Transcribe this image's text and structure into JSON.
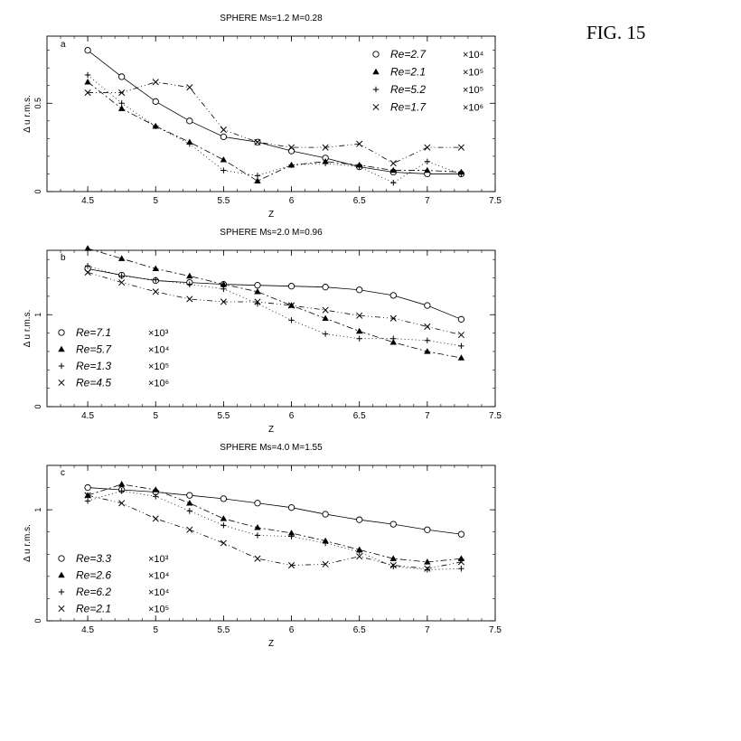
{
  "figure_label": "FIG. 15",
  "chart_data": [
    {
      "type": "line",
      "panel_letter": "a",
      "title": "SPHERE  Ms=1.2 M=0.28",
      "xlabel": "Z",
      "ylabel": "Δ u r.m.s.",
      "xlim": [
        4.2,
        7.5
      ],
      "ylim": [
        0,
        0.88
      ],
      "xticks": [
        4.5,
        5,
        5.5,
        6,
        6.5,
        7,
        7.5
      ],
      "xticklabels": [
        "4.5",
        "5",
        "5.5",
        "6",
        "6.5",
        "7",
        "7.5"
      ],
      "yticks": [
        0,
        0.5
      ],
      "yticklabels": [
        "0",
        "0.5"
      ],
      "legend_position": "top-right",
      "series": [
        {
          "name": "Re=2.7 ×10⁴",
          "marker": "circle",
          "dash": "",
          "x": [
            4.5,
            4.75,
            5,
            5.25,
            5.5,
            5.75,
            6,
            6.25,
            6.5,
            6.75,
            7,
            7.25
          ],
          "y": [
            0.8,
            0.65,
            0.51,
            0.4,
            0.31,
            0.28,
            0.23,
            0.19,
            0.14,
            0.11,
            0.1,
            0.1
          ]
        },
        {
          "name": "Re=2.1 ×10⁵",
          "marker": "triangle",
          "dash": "7 3 2 3",
          "x": [
            4.5,
            4.75,
            5,
            5.25,
            5.5,
            5.75,
            6,
            6.25,
            6.5,
            6.75,
            7,
            7.25
          ],
          "y": [
            0.62,
            0.47,
            0.37,
            0.28,
            0.18,
            0.06,
            0.15,
            0.17,
            0.15,
            0.12,
            0.12,
            0.11
          ]
        },
        {
          "name": "Re=5.2 ×10⁵",
          "marker": "plus",
          "dash": "1 3",
          "x": [
            4.5,
            4.75,
            5,
            5.25,
            5.5,
            5.75,
            6,
            6.25,
            6.5,
            6.75,
            7,
            7.25
          ],
          "y": [
            0.66,
            0.5,
            0.37,
            0.27,
            0.12,
            0.09,
            0.15,
            0.16,
            0.14,
            0.05,
            0.17,
            0.1
          ]
        },
        {
          "name": "Re=1.7 ×10⁶",
          "marker": "cross",
          "dash": "6 3 1 3 1 3",
          "x": [
            4.5,
            4.75,
            5,
            5.25,
            5.5,
            5.75,
            6,
            6.25,
            6.5,
            6.75,
            7,
            7.25
          ],
          "y": [
            0.56,
            0.56,
            0.62,
            0.59,
            0.35,
            0.28,
            0.25,
            0.25,
            0.27,
            0.16,
            0.25,
            0.25
          ]
        }
      ]
    },
    {
      "type": "line",
      "panel_letter": "b",
      "title": "SPHERE  Ms=2.0 M=0.96",
      "xlabel": "Z",
      "ylabel": "Δ u r.m.s.",
      "xlim": [
        4.2,
        7.5
      ],
      "ylim": [
        0,
        1.7
      ],
      "xticks": [
        4.5,
        5,
        5.5,
        6,
        6.5,
        7,
        7.5
      ],
      "xticklabels": [
        "4.5",
        "5",
        "5.5",
        "6",
        "6.5",
        "7",
        "7.5"
      ],
      "yticks": [
        0,
        1
      ],
      "yticklabels": [
        "0",
        "1"
      ],
      "legend_position": "bottom-left",
      "series": [
        {
          "name": "Re=7.1 ×10³",
          "marker": "circle",
          "dash": "",
          "x": [
            4.5,
            4.75,
            5,
            5.25,
            5.5,
            5.75,
            6,
            6.25,
            6.5,
            6.75,
            7,
            7.25
          ],
          "y": [
            1.5,
            1.43,
            1.37,
            1.35,
            1.33,
            1.32,
            1.31,
            1.3,
            1.27,
            1.21,
            1.1,
            0.95
          ]
        },
        {
          "name": "Re=5.7 ×10⁴",
          "marker": "triangle",
          "dash": "7 3 2 3",
          "x": [
            4.5,
            4.75,
            5,
            5.25,
            5.5,
            5.75,
            6,
            6.25,
            6.5,
            6.75,
            7,
            7.25
          ],
          "y": [
            1.72,
            1.61,
            1.5,
            1.42,
            1.33,
            1.25,
            1.1,
            0.96,
            0.82,
            0.7,
            0.6,
            0.53
          ]
        },
        {
          "name": "Re=1.3 ×10⁵",
          "marker": "plus",
          "dash": "1 3",
          "x": [
            4.5,
            4.75,
            5,
            5.25,
            5.5,
            5.75,
            6,
            6.25,
            6.5,
            6.75,
            7,
            7.25
          ],
          "y": [
            1.53,
            1.42,
            1.38,
            1.33,
            1.28,
            1.12,
            0.94,
            0.79,
            0.74,
            0.74,
            0.72,
            0.66
          ]
        },
        {
          "name": "Re=4.5 ×10⁶",
          "marker": "cross",
          "dash": "6 3 1 3 1 3",
          "x": [
            4.5,
            4.75,
            5,
            5.25,
            5.5,
            5.75,
            6,
            6.25,
            6.5,
            6.75,
            7,
            7.25
          ],
          "y": [
            1.46,
            1.35,
            1.25,
            1.17,
            1.14,
            1.14,
            1.1,
            1.05,
            0.99,
            0.96,
            0.87,
            0.78
          ]
        }
      ]
    },
    {
      "type": "line",
      "panel_letter": "c",
      "title": "SPHERE  Ms=4.0 M=1.55",
      "xlabel": "Z",
      "ylabel": "Δ u r.m.s.",
      "xlim": [
        4.2,
        7.5
      ],
      "ylim": [
        0,
        1.4
      ],
      "xticks": [
        4.5,
        5,
        5.5,
        6,
        6.5,
        7,
        7.5
      ],
      "xticklabels": [
        "4.5",
        "5",
        "5.5",
        "6",
        "6.5",
        "7",
        "7.5"
      ],
      "yticks": [
        0,
        1
      ],
      "yticklabels": [
        "0",
        "1"
      ],
      "legend_position": "bottom-left",
      "series": [
        {
          "name": "Re=3.3 ×10³",
          "marker": "circle",
          "dash": "",
          "x": [
            4.5,
            4.75,
            5,
            5.25,
            5.5,
            5.75,
            6,
            6.25,
            6.5,
            6.75,
            7,
            7.25
          ],
          "y": [
            1.2,
            1.18,
            1.16,
            1.13,
            1.1,
            1.06,
            1.02,
            0.96,
            0.91,
            0.87,
            0.82,
            0.78
          ]
        },
        {
          "name": "Re=2.6 ×10⁴",
          "marker": "triangle",
          "dash": "7 3 2 3",
          "x": [
            4.5,
            4.75,
            5,
            5.25,
            5.5,
            5.75,
            6,
            6.25,
            6.5,
            6.75,
            7,
            7.25
          ],
          "y": [
            1.13,
            1.23,
            1.18,
            1.06,
            0.92,
            0.84,
            0.79,
            0.72,
            0.64,
            0.56,
            0.53,
            0.56
          ]
        },
        {
          "name": "Re=6.2 ×10⁴",
          "marker": "plus",
          "dash": "1 3",
          "x": [
            4.5,
            4.75,
            5,
            5.25,
            5.5,
            5.75,
            6,
            6.25,
            6.5,
            6.75,
            7,
            7.25
          ],
          "y": [
            1.08,
            1.17,
            1.12,
            0.99,
            0.86,
            0.77,
            0.76,
            0.7,
            0.62,
            0.49,
            0.46,
            0.47
          ]
        },
        {
          "name": "Re=2.1 ×10⁵",
          "marker": "cross",
          "dash": "6 3 1 3 1 3",
          "x": [
            4.5,
            4.75,
            5,
            5.25,
            5.5,
            5.75,
            6,
            6.25,
            6.5,
            6.75,
            7,
            7.25
          ],
          "y": [
            1.13,
            1.06,
            0.92,
            0.82,
            0.7,
            0.56,
            0.5,
            0.51,
            0.58,
            0.5,
            0.47,
            0.53
          ]
        }
      ]
    }
  ]
}
